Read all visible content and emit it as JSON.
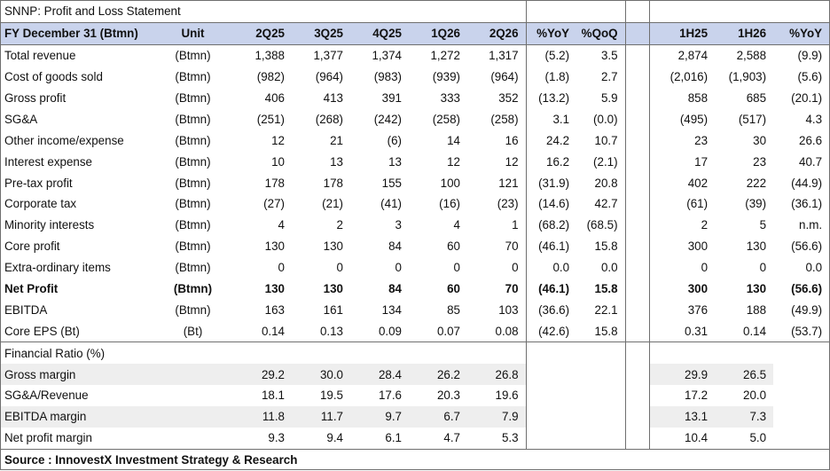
{
  "title": "SNNP: Profit and Loss Statement",
  "header": {
    "fy": "FY December 31 (Btmn)",
    "unit": "Unit",
    "cols": [
      "2Q25",
      "3Q25",
      "4Q25",
      "1Q26",
      "2Q26",
      "%YoY",
      "%QoQ",
      "1H25",
      "1H26",
      "%YoY"
    ]
  },
  "rows": [
    {
      "label": "Total revenue",
      "unit": "(Btmn)",
      "vals": [
        "1,388",
        "1,377",
        "1,374",
        "1,272",
        "1,317",
        "(5.2)",
        "3.5",
        "2,874",
        "2,588",
        "(9.9)"
      ]
    },
    {
      "label": "Cost of goods sold",
      "unit": "(Btmn)",
      "vals": [
        "(982)",
        "(964)",
        "(983)",
        "(939)",
        "(964)",
        "(1.8)",
        "2.7",
        "(2,016)",
        "(1,903)",
        "(5.6)"
      ]
    },
    {
      "label": "Gross profit",
      "unit": "(Btmn)",
      "vals": [
        "406",
        "413",
        "391",
        "333",
        "352",
        "(13.2)",
        "5.9",
        "858",
        "685",
        "(20.1)"
      ]
    },
    {
      "label": "SG&A",
      "unit": "(Btmn)",
      "vals": [
        "(251)",
        "(268)",
        "(242)",
        "(258)",
        "(258)",
        "3.1",
        "(0.0)",
        "(495)",
        "(517)",
        "4.3"
      ]
    },
    {
      "label": "Other income/expense",
      "unit": "(Btmn)",
      "vals": [
        "12",
        "21",
        "(6)",
        "14",
        "16",
        "24.2",
        "10.7",
        "23",
        "30",
        "26.6"
      ]
    },
    {
      "label": "Interest expense",
      "unit": "(Btmn)",
      "vals": [
        "10",
        "13",
        "13",
        "12",
        "12",
        "16.2",
        "(2.1)",
        "17",
        "23",
        "40.7"
      ]
    },
    {
      "label": "Pre-tax profit",
      "unit": "(Btmn)",
      "vals": [
        "178",
        "178",
        "155",
        "100",
        "121",
        "(31.9)",
        "20.8",
        "402",
        "222",
        "(44.9)"
      ]
    },
    {
      "label": "Corporate tax",
      "unit": "(Btmn)",
      "vals": [
        "(27)",
        "(21)",
        "(41)",
        "(16)",
        "(23)",
        "(14.6)",
        "42.7",
        "(61)",
        "(39)",
        "(36.1)"
      ]
    },
    {
      "label": "Minority interests",
      "unit": "(Btmn)",
      "vals": [
        "4",
        "2",
        "3",
        "4",
        "1",
        "(68.2)",
        "(68.5)",
        "2",
        "5",
        "n.m."
      ]
    },
    {
      "label": "Core profit",
      "unit": "(Btmn)",
      "vals": [
        "130",
        "130",
        "84",
        "60",
        "70",
        "(46.1)",
        "15.8",
        "300",
        "130",
        "(56.6)"
      ]
    },
    {
      "label": "Extra-ordinary items",
      "unit": "(Btmn)",
      "vals": [
        "0",
        "0",
        "0",
        "0",
        "0",
        "0.0",
        "0.0",
        "0",
        "0",
        "0.0"
      ]
    },
    {
      "label": "Net Profit",
      "unit": "(Btmn)",
      "vals": [
        "130",
        "130",
        "84",
        "60",
        "70",
        "(46.1)",
        "15.8",
        "300",
        "130",
        "(56.6)"
      ],
      "bold": true
    },
    {
      "label": "EBITDA",
      "unit": "(Btmn)",
      "vals": [
        "163",
        "161",
        "134",
        "85",
        "103",
        "(36.6)",
        "22.1",
        "376",
        "188",
        "(49.9)"
      ]
    },
    {
      "label": "Core EPS (Bt)",
      "unit": "(Bt)",
      "vals": [
        "0.14",
        "0.13",
        "0.09",
        "0.07",
        "0.08",
        "(42.6)",
        "15.8",
        "0.31",
        "0.14",
        "(53.7)"
      ]
    }
  ],
  "ratio_title": "Financial Ratio (%)",
  "ratios": [
    {
      "label": "Gross margin",
      "vals": [
        "29.2",
        "30.0",
        "28.4",
        "26.2",
        "26.8",
        "",
        "",
        "29.9",
        "26.5",
        ""
      ]
    },
    {
      "label": "SG&A/Revenue",
      "vals": [
        "18.1",
        "19.5",
        "17.6",
        "20.3",
        "19.6",
        "",
        "",
        "17.2",
        "20.0",
        ""
      ]
    },
    {
      "label": "EBITDA margin",
      "vals": [
        "11.8",
        "11.7",
        "9.7",
        "6.7",
        "7.9",
        "",
        "",
        "13.1",
        "7.3",
        ""
      ]
    },
    {
      "label": "Net profit margin",
      "vals": [
        "9.3",
        "9.4",
        "6.1",
        "4.7",
        "5.3",
        "",
        "",
        "10.4",
        "5.0",
        ""
      ]
    }
  ],
  "source": "Source : InnovestX Investment Strategy & Research"
}
